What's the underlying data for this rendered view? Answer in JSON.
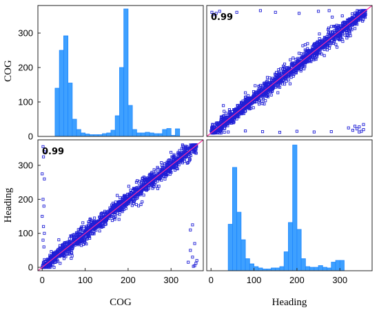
{
  "chart_data": {
    "type": "scatter_matrix",
    "variables": [
      "COG",
      "Heading"
    ],
    "axis_ticks": [
      0,
      100,
      200,
      300
    ],
    "axis_tick_labels": [
      "0",
      "100",
      "200",
      "300"
    ],
    "xlabels": [
      "COG",
      "Heading"
    ],
    "ylabels": [
      "COG",
      "Heading"
    ],
    "correlations": [
      "0.99",
      "0.99"
    ],
    "colors": {
      "bar_fill": "#3ea0ff",
      "bar_stroke": "#1e88ff",
      "marker": "#1f1fd6",
      "fit_line": "#ff2d9f"
    },
    "histograms": [
      {
        "variable": "COG",
        "type": "bar",
        "bin_width": 10,
        "x": [
          0,
          10,
          20,
          30,
          40,
          50,
          60,
          70,
          80,
          90,
          100,
          110,
          120,
          130,
          140,
          150,
          160,
          170,
          180,
          190,
          200,
          210,
          220,
          230,
          240,
          250,
          260,
          270,
          280,
          290,
          300,
          310,
          320,
          330,
          340,
          350
        ],
        "values": [
          0,
          0,
          0,
          140,
          250,
          292,
          155,
          50,
          20,
          10,
          7,
          5,
          5,
          5,
          8,
          10,
          18,
          60,
          200,
          370,
          90,
          20,
          10,
          10,
          12,
          10,
          8,
          8,
          20,
          23,
          3,
          22,
          0,
          0,
          0,
          0
        ]
      },
      {
        "variable": "Heading",
        "type": "bar",
        "bin_width": 10,
        "x": [
          0,
          10,
          20,
          30,
          40,
          50,
          60,
          70,
          80,
          90,
          100,
          110,
          120,
          130,
          140,
          150,
          160,
          170,
          180,
          190,
          200,
          210,
          220,
          230,
          240,
          250,
          260,
          270,
          280,
          290,
          300,
          310,
          320,
          330,
          340,
          350
        ],
        "values": [
          0,
          0,
          0,
          0,
          135,
          300,
          170,
          90,
          35,
          20,
          12,
          8,
          5,
          5,
          8,
          8,
          12,
          55,
          140,
          365,
          120,
          35,
          12,
          10,
          10,
          15,
          10,
          8,
          25,
          30,
          30,
          0,
          0,
          0,
          0,
          0
        ]
      }
    ],
    "scatter": [
      {
        "x_variable": "Heading",
        "y_variable": "COG",
        "xlim": [
          -10,
          375
        ],
        "ylim": [
          -10,
          375
        ],
        "trend_line": {
          "x": [
            -10,
            375
          ],
          "y": [
            -10,
            375
          ]
        },
        "points_main": {
          "count": 1500,
          "x_range": [
            0,
            360
          ],
          "noise_sd": 10
        },
        "outliers": [
          [
            2,
            355
          ],
          [
            5,
            348
          ],
          [
            12,
            352
          ],
          [
            20,
            358
          ],
          [
            60,
            355
          ],
          [
            115,
            360
          ],
          [
            150,
            355
          ],
          [
            205,
            352
          ],
          [
            250,
            358
          ],
          [
            275,
            360
          ],
          [
            10,
            5
          ],
          [
            40,
            3
          ],
          [
            80,
            6
          ],
          [
            120,
            4
          ],
          [
            160,
            2
          ],
          [
            200,
            5
          ],
          [
            240,
            3
          ],
          [
            280,
            4
          ],
          [
            320,
            15
          ],
          [
            330,
            8
          ],
          [
            335,
            20
          ],
          [
            340,
            12
          ],
          [
            345,
            18
          ],
          [
            350,
            5
          ],
          [
            355,
            25
          ],
          [
            345,
            3
          ],
          [
            355,
            10
          ]
        ]
      },
      {
        "x_variable": "COG",
        "y_variable": "Heading",
        "xlim": [
          -10,
          375
        ],
        "ylim": [
          -10,
          375
        ],
        "trend_line": {
          "x": [
            -10,
            375
          ],
          "y": [
            -10,
            375
          ]
        },
        "points_main": {
          "count": 1500,
          "x_range": [
            0,
            360
          ],
          "noise_sd": 10
        },
        "outliers": [
          [
            2,
            355
          ],
          [
            5,
            340
          ],
          [
            3,
            325
          ],
          [
            0,
            275
          ],
          [
            5,
            260
          ],
          [
            2,
            200
          ],
          [
            4,
            180
          ],
          [
            0,
            150
          ],
          [
            3,
            120
          ],
          [
            5,
            100
          ],
          [
            2,
            80
          ],
          [
            4,
            60
          ],
          [
            355,
            5
          ],
          [
            358,
            12
          ],
          [
            350,
            30
          ],
          [
            345,
            50
          ],
          [
            355,
            70
          ],
          [
            345,
            110
          ],
          [
            350,
            125
          ],
          [
            360,
            20
          ],
          [
            340,
            15
          ],
          [
            352,
            3
          ]
        ]
      }
    ]
  }
}
